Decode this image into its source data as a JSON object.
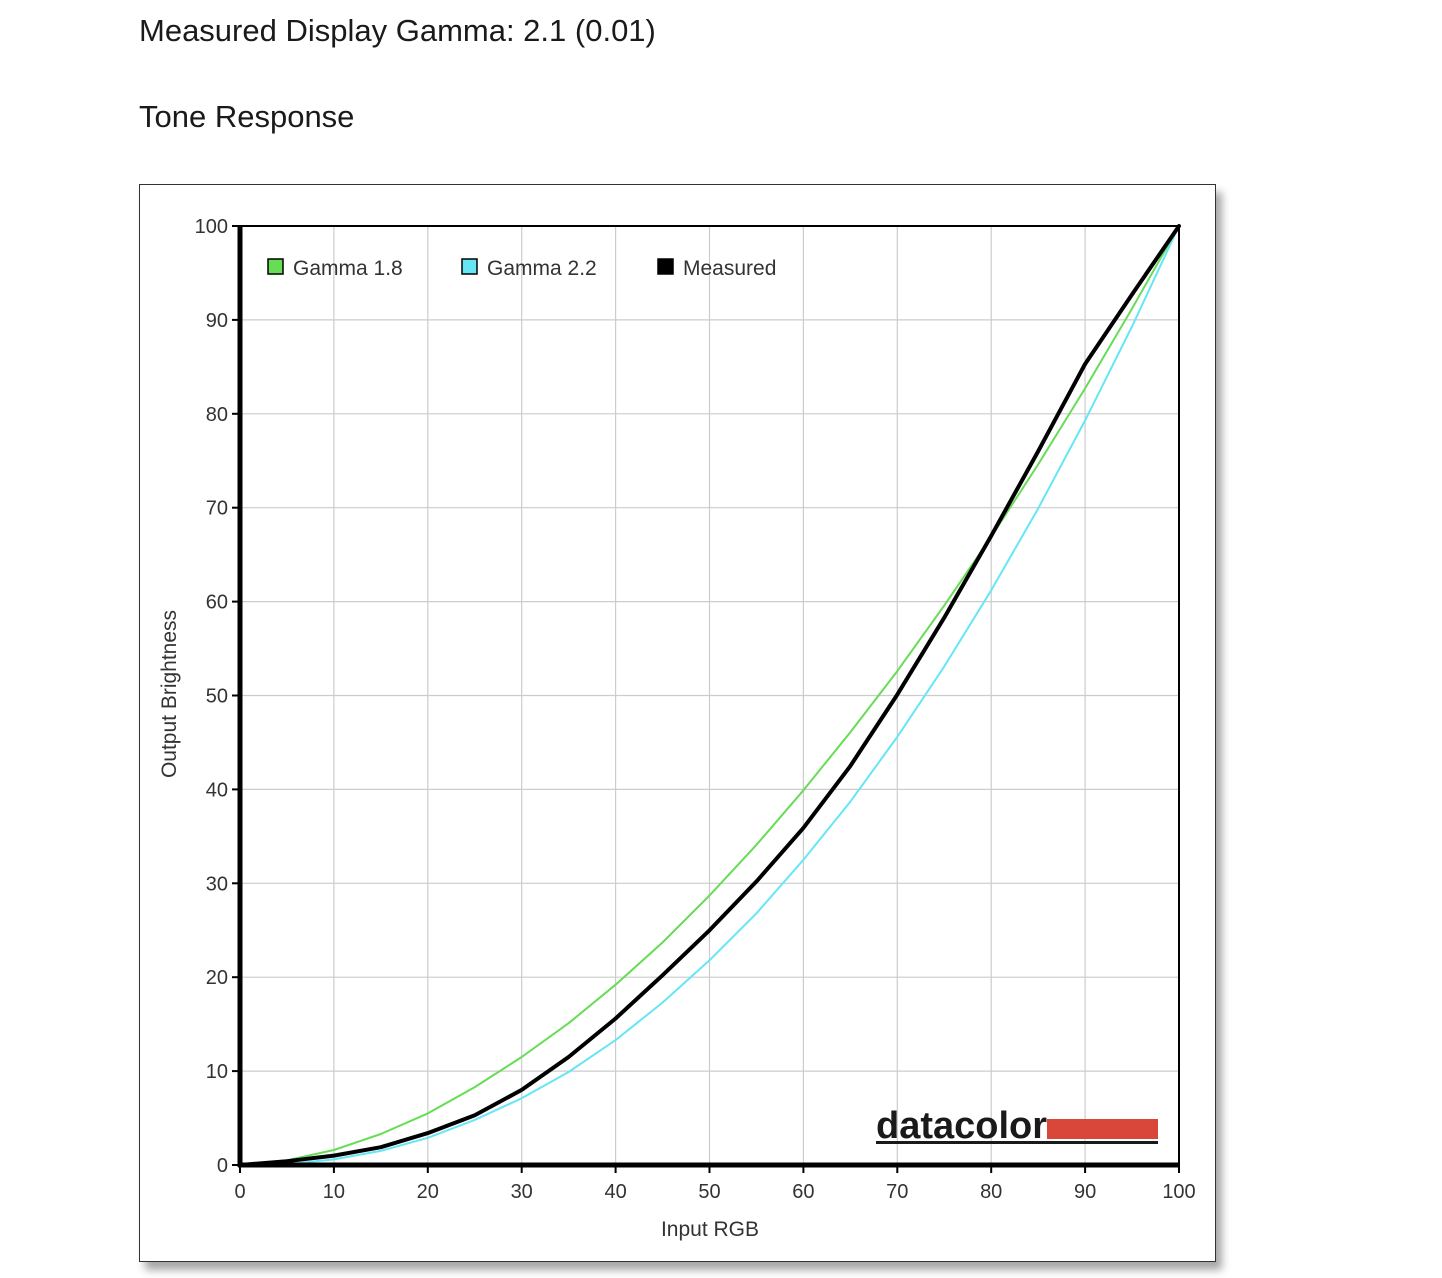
{
  "header": {
    "gamma_text": "Measured Display Gamma: 2.1 (0.01)",
    "section_title": "Tone Response"
  },
  "brand": {
    "text": "datacolor",
    "bar_color": "#d9473a"
  },
  "chart_data": {
    "type": "line",
    "title": "Tone Response",
    "xlabel": "Input RGB",
    "ylabel": "Output Brightness",
    "xlim": [
      0,
      100
    ],
    "ylim": [
      0,
      100
    ],
    "x_ticks": [
      0,
      10,
      20,
      30,
      40,
      50,
      60,
      70,
      80,
      90,
      100
    ],
    "y_ticks": [
      0,
      10,
      20,
      30,
      40,
      50,
      60,
      70,
      80,
      90,
      100
    ],
    "grid": true,
    "legend_position": "top-left",
    "series": [
      {
        "name": "Gamma 1.8",
        "color": "#66dd55",
        "x": [
          0,
          5,
          10,
          15,
          20,
          25,
          30,
          35,
          40,
          45,
          50,
          55,
          60,
          65,
          70,
          75,
          80,
          85,
          90,
          95,
          100
        ],
        "values": [
          0,
          0.5,
          1.6,
          3.3,
          5.5,
          8.3,
          11.5,
          15.1,
          19.2,
          23.7,
          28.7,
          34.1,
          39.9,
          46.1,
          52.6,
          59.6,
          66.9,
          74.6,
          82.7,
          91.2,
          100
        ]
      },
      {
        "name": "Gamma 2.2",
        "color": "#66e6f5",
        "x": [
          0,
          5,
          10,
          15,
          20,
          25,
          30,
          35,
          40,
          45,
          50,
          55,
          60,
          65,
          70,
          75,
          80,
          85,
          90,
          95,
          100
        ],
        "values": [
          0,
          0.1,
          0.6,
          1.5,
          2.9,
          4.8,
          7.1,
          9.9,
          13.3,
          17.3,
          21.8,
          26.8,
          32.5,
          38.7,
          45.6,
          53.1,
          61.2,
          69.9,
          79.3,
          89.3,
          100
        ]
      },
      {
        "name": "Measured",
        "color": "#000000",
        "x": [
          0,
          5,
          10,
          15,
          20,
          25,
          30,
          35,
          40,
          45,
          50,
          55,
          60,
          65,
          70,
          75,
          80,
          85,
          90,
          95,
          100
        ],
        "values": [
          0,
          0.4,
          1.0,
          1.9,
          3.4,
          5.3,
          8.0,
          11.5,
          15.6,
          20.2,
          25.0,
          30.2,
          35.9,
          42.5,
          50.1,
          58.3,
          67.0,
          76.0,
          85.3,
          92.7,
          100
        ]
      }
    ]
  }
}
